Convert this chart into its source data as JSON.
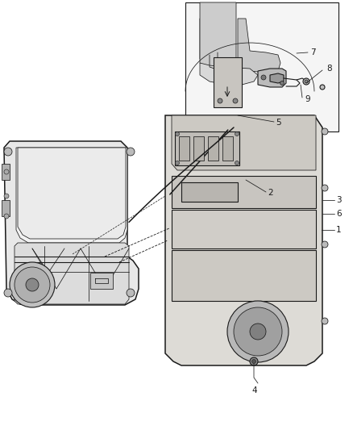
{
  "bg_color": "#ffffff",
  "lc": "#1a1a1a",
  "fc_door": "#e8e8e8",
  "fc_panel": "#d8d8d8",
  "fc_dark": "#b0b0b0",
  "fc_light": "#f0f0f0",
  "label_fs": 7.5,
  "lw_main": 1.1,
  "lw_med": 0.8,
  "lw_thin": 0.55
}
